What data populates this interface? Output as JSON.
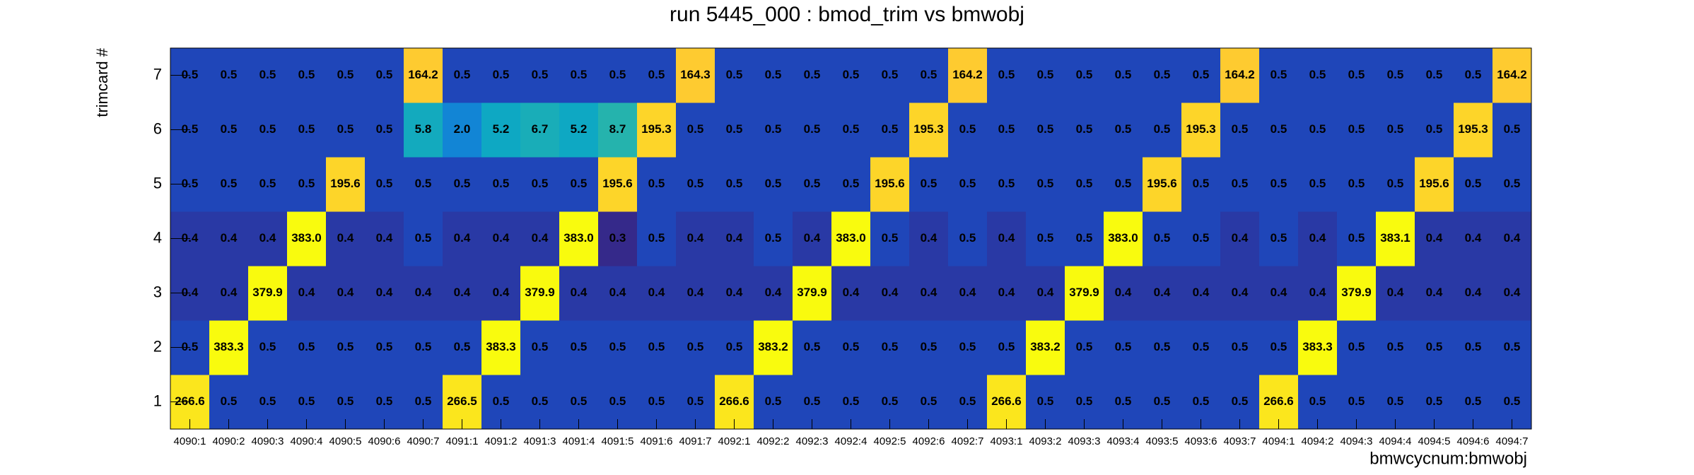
{
  "chart_data": {
    "type": "heatmap",
    "title": "run 5445_000 : bmod_trim vs bmwobj",
    "x_label": "bmwcycnum:bmwobj",
    "y_label": "trimcard #",
    "x_categories": [
      "4090:1",
      "4090:2",
      "4090:3",
      "4090:4",
      "4090:5",
      "4090:6",
      "4090:7",
      "4091:1",
      "4091:2",
      "4091:3",
      "4091:4",
      "4091:5",
      "4091:6",
      "4091:7",
      "4092:1",
      "4092:2",
      "4092:3",
      "4092:4",
      "4092:5",
      "4092:6",
      "4092:7",
      "4093:1",
      "4093:2",
      "4093:3",
      "4093:4",
      "4093:5",
      "4093:6",
      "4093:7",
      "4094:1",
      "4094:2",
      "4094:3",
      "4094:4",
      "4094:5",
      "4094:6",
      "4094:7"
    ],
    "y_categories": [
      "1",
      "2",
      "3",
      "4",
      "5",
      "6",
      "7"
    ],
    "values": [
      [
        266.6,
        0.5,
        0.5,
        0.5,
        0.5,
        0.5,
        0.5,
        266.5,
        0.5,
        0.5,
        0.5,
        0.5,
        0.5,
        0.5,
        266.6,
        0.5,
        0.5,
        0.5,
        0.5,
        0.5,
        0.5,
        266.6,
        0.5,
        0.5,
        0.5,
        0.5,
        0.5,
        0.5,
        266.6,
        0.5,
        0.5,
        0.5,
        0.5,
        0.5,
        0.5
      ],
      [
        0.5,
        383.3,
        0.5,
        0.5,
        0.5,
        0.5,
        0.5,
        0.5,
        383.3,
        0.5,
        0.5,
        0.5,
        0.5,
        0.5,
        0.5,
        383.2,
        0.5,
        0.5,
        0.5,
        0.5,
        0.5,
        0.5,
        383.2,
        0.5,
        0.5,
        0.5,
        0.5,
        0.5,
        0.5,
        383.3,
        0.5,
        0.5,
        0.5,
        0.5,
        0.5
      ],
      [
        0.4,
        0.4,
        379.9,
        0.4,
        0.4,
        0.4,
        0.4,
        0.4,
        0.4,
        379.9,
        0.4,
        0.4,
        0.4,
        0.4,
        0.4,
        0.4,
        379.9,
        0.4,
        0.4,
        0.4,
        0.4,
        0.4,
        0.4,
        379.9,
        0.4,
        0.4,
        0.4,
        0.4,
        0.4,
        0.4,
        379.9,
        0.4,
        0.4,
        0.4,
        0.4
      ],
      [
        0.4,
        0.4,
        0.4,
        383.0,
        0.4,
        0.4,
        0.5,
        0.4,
        0.4,
        0.4,
        383.0,
        0.3,
        0.5,
        0.4,
        0.4,
        0.5,
        0.4,
        383.0,
        0.5,
        0.4,
        0.5,
        0.4,
        0.5,
        0.5,
        383.0,
        0.5,
        0.5,
        0.4,
        0.5,
        0.4,
        0.5,
        383.1,
        0.4,
        0.4,
        0.4
      ],
      [
        0.5,
        0.5,
        0.5,
        0.5,
        195.6,
        0.5,
        0.5,
        0.5,
        0.5,
        0.5,
        0.5,
        195.6,
        0.5,
        0.5,
        0.5,
        0.5,
        0.5,
        0.5,
        195.6,
        0.5,
        0.5,
        0.5,
        0.5,
        0.5,
        0.5,
        195.6,
        0.5,
        0.5,
        0.5,
        0.5,
        0.5,
        0.5,
        195.6,
        0.5,
        0.5
      ],
      [
        0.5,
        0.5,
        0.5,
        0.5,
        0.5,
        0.5,
        5.8,
        2.0,
        5.2,
        6.7,
        5.2,
        8.7,
        195.3,
        0.5,
        0.5,
        0.5,
        0.5,
        0.5,
        0.5,
        195.3,
        0.5,
        0.5,
        0.5,
        0.5,
        0.5,
        0.5,
        195.3,
        0.5,
        0.5,
        0.5,
        0.5,
        0.5,
        0.5,
        195.3,
        0.5
      ],
      [
        0.5,
        0.5,
        0.5,
        0.5,
        0.5,
        0.5,
        164.2,
        0.5,
        0.5,
        0.5,
        0.5,
        0.5,
        0.5,
        164.3,
        0.5,
        0.5,
        0.5,
        0.5,
        0.5,
        0.5,
        164.2,
        0.5,
        0.5,
        0.5,
        0.5,
        0.5,
        0.5,
        164.2,
        0.5,
        0.5,
        0.5,
        0.5,
        0.5,
        0.5,
        164.2
      ]
    ],
    "value_labels": [
      [
        "266.6",
        "0.5",
        "0.5",
        "0.5",
        "0.5",
        "0.5",
        "0.5",
        "266.5",
        "0.5",
        "0.5",
        "0.5",
        "0.5",
        "0.5",
        "0.5",
        "266.6",
        "0.5",
        "0.5",
        "0.5",
        "0.5",
        "0.5",
        "0.5",
        "266.6",
        "0.5",
        "0.5",
        "0.5",
        "0.5",
        "0.5",
        "0.5",
        "266.6",
        "0.5",
        "0.5",
        "0.5",
        "0.5",
        "0.5",
        "0.5"
      ],
      [
        "0.5",
        "383.3",
        "0.5",
        "0.5",
        "0.5",
        "0.5",
        "0.5",
        "0.5",
        "383.3",
        "0.5",
        "0.5",
        "0.5",
        "0.5",
        "0.5",
        "0.5",
        "383.2",
        "0.5",
        "0.5",
        "0.5",
        "0.5",
        "0.5",
        "0.5",
        "383.2",
        "0.5",
        "0.5",
        "0.5",
        "0.5",
        "0.5",
        "0.5",
        "383.3",
        "0.5",
        "0.5",
        "0.5",
        "0.5",
        "0.5"
      ],
      [
        "0.4",
        "0.4",
        "379.9",
        "0.4",
        "0.4",
        "0.4",
        "0.4",
        "0.4",
        "0.4",
        "379.9",
        "0.4",
        "0.4",
        "0.4",
        "0.4",
        "0.4",
        "0.4",
        "379.9",
        "0.4",
        "0.4",
        "0.4",
        "0.4",
        "0.4",
        "0.4",
        "379.9",
        "0.4",
        "0.4",
        "0.4",
        "0.4",
        "0.4",
        "0.4",
        "379.9",
        "0.4",
        "0.4",
        "0.4",
        "0.4"
      ],
      [
        "0.4",
        "0.4",
        "0.4",
        "383.0",
        "0.4",
        "0.4",
        "0.5",
        "0.4",
        "0.4",
        "0.4",
        "383.0",
        "0.3",
        "0.5",
        "0.4",
        "0.4",
        "0.5",
        "0.4",
        "383.0",
        "0.5",
        "0.4",
        "0.5",
        "0.4",
        "0.5",
        "0.5",
        "383.0",
        "0.5",
        "0.5",
        "0.4",
        "0.5",
        "0.4",
        "0.5",
        "383.1",
        "0.4",
        "0.4",
        "0.4"
      ],
      [
        "0.5",
        "0.5",
        "0.5",
        "0.5",
        "195.6",
        "0.5",
        "0.5",
        "0.5",
        "0.5",
        "0.5",
        "0.5",
        "195.6",
        "0.5",
        "0.5",
        "0.5",
        "0.5",
        "0.5",
        "0.5",
        "195.6",
        "0.5",
        "0.5",
        "0.5",
        "0.5",
        "0.5",
        "0.5",
        "195.6",
        "0.5",
        "0.5",
        "0.5",
        "0.5",
        "0.5",
        "0.5",
        "195.6",
        "0.5",
        "0.5"
      ],
      [
        "0.5",
        "0.5",
        "0.5",
        "0.5",
        "0.5",
        "0.5",
        "5.8",
        "2.0",
        "5.2",
        "6.7",
        "5.2",
        "8.7",
        "195.3",
        "0.5",
        "0.5",
        "0.5",
        "0.5",
        "0.5",
        "0.5",
        "195.3",
        "0.5",
        "0.5",
        "0.5",
        "0.5",
        "0.5",
        "0.5",
        "195.3",
        "0.5",
        "0.5",
        "0.5",
        "0.5",
        "0.5",
        "0.5",
        "195.3",
        "0.5"
      ],
      [
        "0.5",
        "0.5",
        "0.5",
        "0.5",
        "0.5",
        "0.5",
        "164.2",
        "0.5",
        "0.5",
        "0.5",
        "0.5",
        "0.5",
        "0.5",
        "164.3",
        "0.5",
        "0.5",
        "0.5",
        "0.5",
        "0.5",
        "0.5",
        "164.2",
        "0.5",
        "0.5",
        "0.5",
        "0.5",
        "0.5",
        "0.5",
        "164.2",
        "0.5",
        "0.5",
        "0.5",
        "0.5",
        "0.5",
        "0.5",
        "164.2"
      ]
    ],
    "log_z": true,
    "palette": [
      "#35298a",
      "#0f5cdd",
      "#1481d6",
      "#06a4ca",
      "#2eb7a4",
      "#87bf77",
      "#d1bb59",
      "#fec832",
      "#f9fb0e"
    ]
  }
}
